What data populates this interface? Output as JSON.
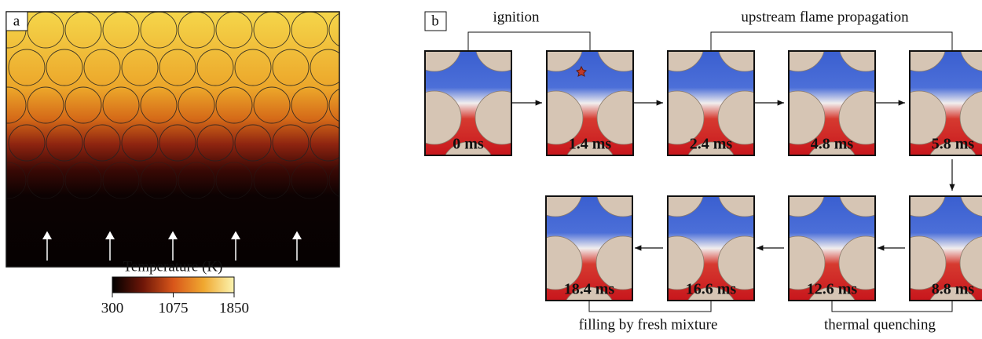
{
  "panel_a": {
    "label": "a",
    "colorbar": {
      "title": "Temperature (K)",
      "lim": [
        300,
        1850
      ],
      "ticks": [
        300,
        1075,
        1850
      ]
    }
  },
  "panel_b": {
    "label": "b",
    "frames_top": [
      "0 ms",
      "1.4 ms",
      "2.4 ms",
      "4.8 ms",
      "5.8 ms"
    ],
    "frames_bottom": [
      "18.4 ms",
      "16.6 ms",
      "12.6 ms",
      "8.8 ms"
    ],
    "stages": [
      "ignition",
      "upstream flame propagation",
      "filling by fresh mixture",
      "thermal quenching"
    ]
  }
}
